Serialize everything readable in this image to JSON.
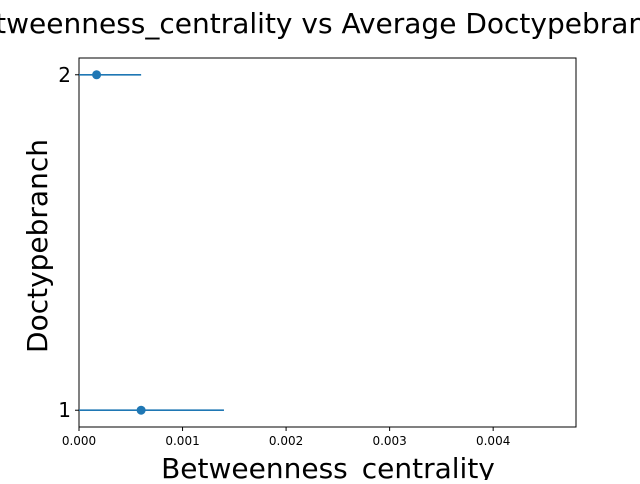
{
  "chart_data": {
    "type": "scatter",
    "title": "Betweenness_centrality vs Average Doctypebranch",
    "xlabel": "Betweenness_centrality",
    "ylabel": "Doctypebranch",
    "xlim": [
      0.0,
      0.0048
    ],
    "ylim": [
      0.95,
      2.05
    ],
    "x_ticks": [
      0.0,
      0.001,
      0.002,
      0.003,
      0.004
    ],
    "x_tick_labels": [
      "0.000",
      "0.001",
      "0.002",
      "0.003",
      "0.004"
    ],
    "y_ticks": [
      1,
      2
    ],
    "y_tick_labels": [
      "1",
      "2"
    ],
    "grid": false,
    "color": "#1f77b4",
    "points": [
      {
        "x": 0.0006,
        "y": 1,
        "xerr": 0.0008
      },
      {
        "x": 0.00017,
        "y": 2,
        "xerr": 0.00043
      }
    ]
  }
}
